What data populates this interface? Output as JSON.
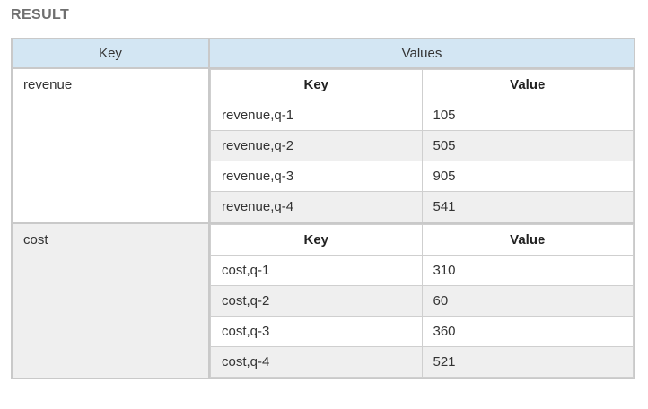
{
  "page": {
    "title": "RESULT"
  },
  "colors": {
    "header_bg": "#d3e6f3",
    "border_outer": "#c9c9c9",
    "border_inner": "#cfcfcf",
    "zebra_row_bg": "#efefef",
    "title_text": "#6f6f6f",
    "body_text": "#333333"
  },
  "table": {
    "outer_headers": [
      "Key",
      "Values"
    ],
    "inner_headers": [
      "Key",
      "Value"
    ],
    "sections": [
      {
        "key": "revenue",
        "rows": [
          {
            "key": "revenue,q-1",
            "value": "105"
          },
          {
            "key": "revenue,q-2",
            "value": "505"
          },
          {
            "key": "revenue,q-3",
            "value": "905"
          },
          {
            "key": "revenue,q-4",
            "value": "541"
          }
        ]
      },
      {
        "key": "cost",
        "rows": [
          {
            "key": "cost,q-1",
            "value": "310"
          },
          {
            "key": "cost,q-2",
            "value": "60"
          },
          {
            "key": "cost,q-3",
            "value": "360"
          },
          {
            "key": "cost,q-4",
            "value": "521"
          }
        ]
      }
    ]
  }
}
